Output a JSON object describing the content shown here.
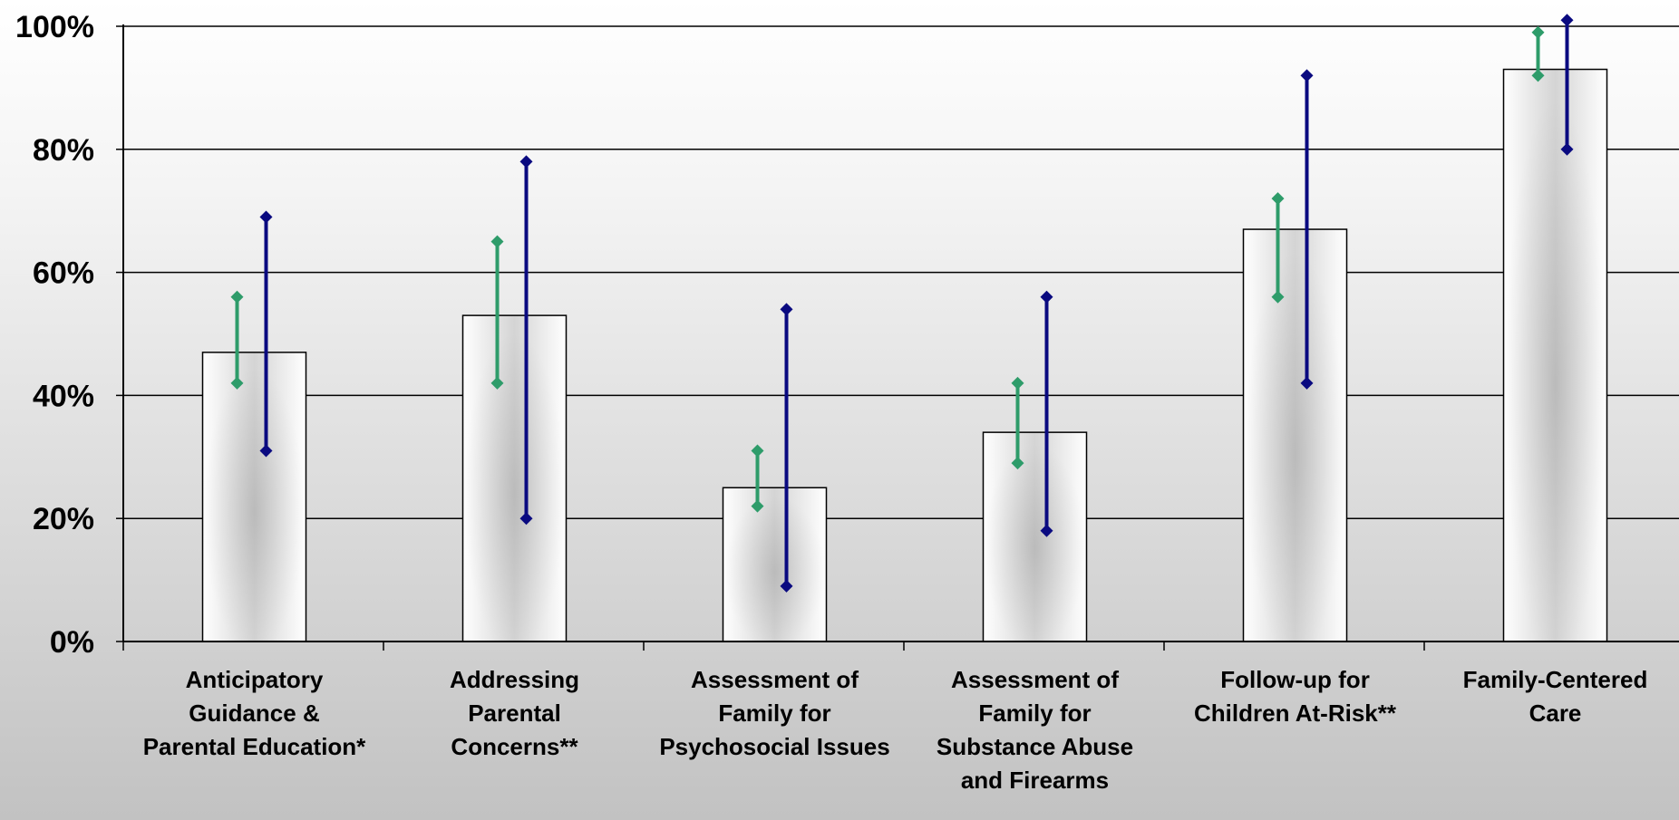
{
  "chart_data": {
    "type": "bar",
    "title": "",
    "xlabel": "",
    "ylabel": "",
    "ylim": [
      0,
      100
    ],
    "y_ticks": [
      "0%",
      "20%",
      "40%",
      "60%",
      "80%",
      "100%"
    ],
    "grid": true,
    "categories": [
      [
        "Anticipatory",
        "Guidance &",
        "Parental Education*"
      ],
      [
        "Addressing",
        "Parental",
        "Concerns**"
      ],
      [
        "Assessment of",
        "Family for",
        "Psychosocial Issues"
      ],
      [
        "Assessment of",
        "Family for",
        "Substance Abuse",
        "and Firearms"
      ],
      [
        "Follow-up for",
        "Children At-Risk**"
      ],
      [
        "Family-Centered",
        "Care"
      ]
    ],
    "values": [
      47,
      53,
      25,
      34,
      67,
      93
    ],
    "ranges": [
      {
        "color": "#2e9c6a",
        "intervals": [
          [
            42,
            56
          ],
          [
            42,
            65
          ],
          [
            22,
            31
          ],
          [
            29,
            42
          ],
          [
            56,
            72
          ],
          [
            92,
            99
          ]
        ]
      },
      {
        "color": "#0a0a80",
        "intervals": [
          [
            31,
            69
          ],
          [
            20,
            78
          ],
          [
            9,
            54
          ],
          [
            18,
            56
          ],
          [
            42,
            92
          ],
          [
            80,
            101
          ]
        ]
      }
    ],
    "colors": {
      "bar_edge": "#000000",
      "gridline": "#000000",
      "green_range": "#2e9c6a",
      "blue_range": "#0a0a80"
    }
  }
}
